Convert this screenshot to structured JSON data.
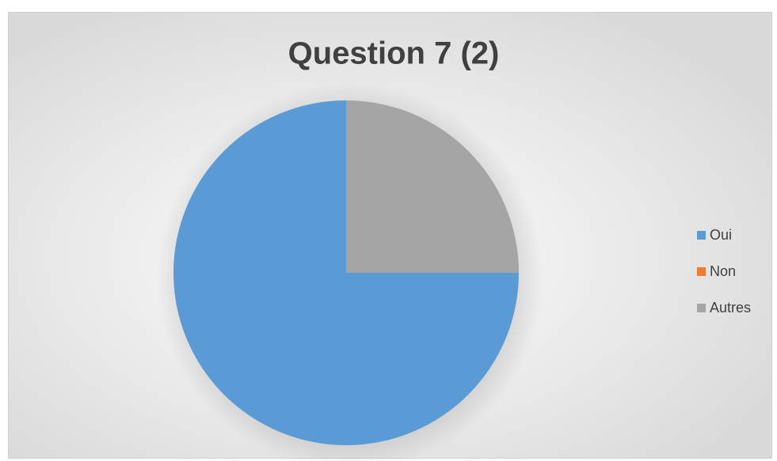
{
  "chart_data": {
    "type": "pie",
    "title": "Question 7 (2)",
    "categories": [
      "Oui",
      "Non",
      "Autres"
    ],
    "values": [
      75,
      0,
      25
    ],
    "colors": [
      "#5b9bd5",
      "#ed7d31",
      "#a5a5a5"
    ],
    "legend": "right"
  }
}
